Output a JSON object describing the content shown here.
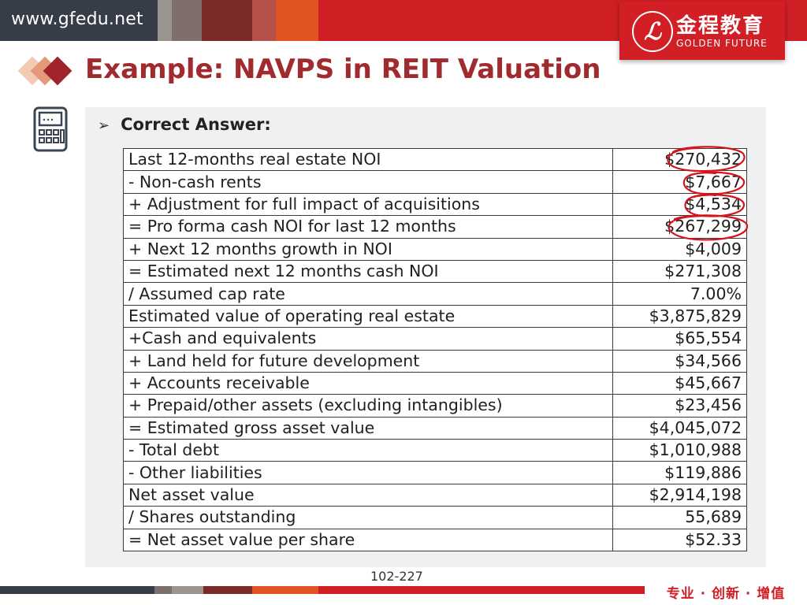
{
  "header": {
    "site_url": "www.gfedu.net",
    "logo": {
      "chinese_name": "金程教育",
      "english_name": "GOLDEN FUTURE",
      "emblem_letter": "ℒ"
    }
  },
  "slide": {
    "title": "Example: NAVPS in REIT Valuation",
    "answer_heading": "Correct Answer:",
    "table": {
      "rows": [
        {
          "label": "Last 12-months real estate NOI",
          "value": "$270,432",
          "circled": true
        },
        {
          "label": "-  Non-cash rents",
          "value": "$7,667",
          "circled": true
        },
        {
          "label": "+ Adjustment for full impact of acquisitions",
          "value": "$4,534",
          "circled": true
        },
        {
          "label": "= Pro forma cash NOI for last 12 months",
          "value": "$267,299",
          "circled": true
        },
        {
          "label": "+ Next 12 months growth in NOI",
          "value": "$4,009",
          "circled": false
        },
        {
          "label": "= Estimated next 12 months cash NOI",
          "value": "$271,308",
          "circled": false
        },
        {
          "label": "/ Assumed cap rate",
          "value": "7.00%",
          "circled": false
        },
        {
          "label": "Estimated value of operating real estate",
          "value": "$3,875,829",
          "circled": false
        },
        {
          "label": "+Cash and equivalents",
          "value": "$65,554",
          "circled": false
        },
        {
          "label": "+ Land held for future development",
          "value": "$34,566",
          "circled": false
        },
        {
          "label": "+ Accounts receivable",
          "value": "$45,667",
          "circled": false
        },
        {
          "label": "+ Prepaid/other assets (excluding intangibles)",
          "value": "$23,456",
          "circled": false
        },
        {
          "label": "= Estimated gross asset value",
          "value": "$4,045,072",
          "circled": false
        },
        {
          "label": "-  Total debt",
          "value": "$1,010,988",
          "circled": false
        },
        {
          "label": "-  Other liabilities",
          "value": "$119,886",
          "circled": false
        },
        {
          "label": "Net asset value",
          "value": "$2,914,198",
          "circled": false
        },
        {
          "label": "/ Shares outstanding",
          "value": "55,689",
          "circled": false
        },
        {
          "label": "= Net asset value per share",
          "value": "$52.33",
          "circled": false
        }
      ]
    },
    "page_number": "102-227"
  },
  "footer": {
    "slogan": "专业 · 创新 · 增值"
  },
  "colors": {
    "brand_red": "#cf1f24",
    "title_red": "#a12a2f",
    "annotation_red": "#d4141c",
    "panel_gray": "#eef0f2"
  },
  "icons": [
    "diamond-bullet-icon",
    "calculator-icon",
    "arrow-bullet-icon",
    "logo-emblem-icon"
  ]
}
